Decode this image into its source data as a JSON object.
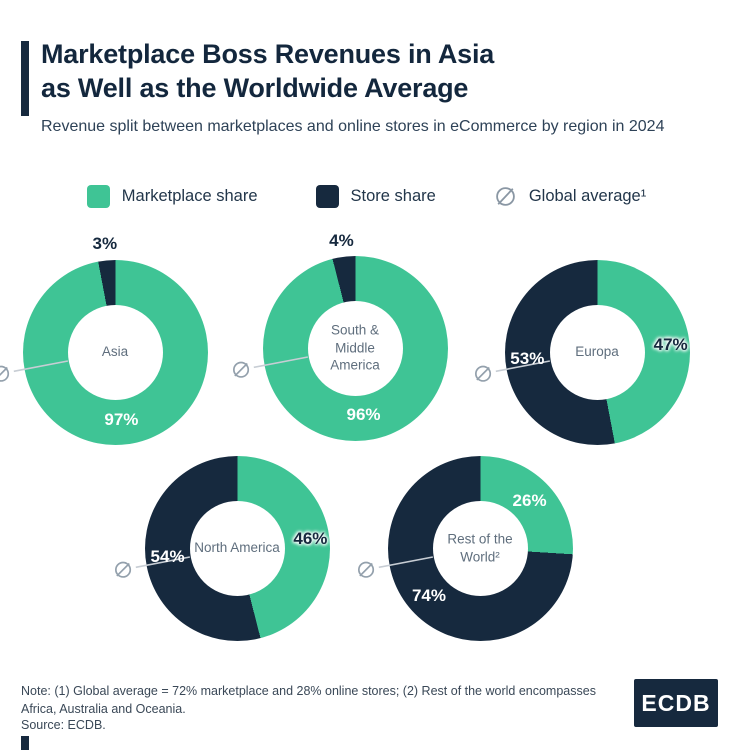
{
  "header": {
    "title_line1": "Marketplace Boss Revenues in Asia",
    "title_line2": "as Well as the Worldwide Average",
    "subtitle": "Revenue split between marketplaces and online stores in eCommerce by region in 2024"
  },
  "legend": {
    "marketplace": "Marketplace share",
    "store": "Store share",
    "global": "Global average¹"
  },
  "colors": {
    "green": "#3FC495",
    "navy": "#16293E",
    "marker_gray": "#93A0AC",
    "line_gray": "#C7CDD4"
  },
  "chart_data": {
    "type": "pie",
    "variant": "donut-multiples",
    "units": "%",
    "legend_position": "top",
    "global_average": {
      "marketplace": 72,
      "store": 28
    },
    "series_names": [
      "Marketplace share",
      "Store share"
    ],
    "charts": [
      {
        "region": "Asia",
        "marketplace_share": 97,
        "store_share": 3
      },
      {
        "region": "South & Middle America",
        "marketplace_share": 96,
        "store_share": 4
      },
      {
        "region": "Europa",
        "marketplace_share": 47,
        "store_share": 53
      },
      {
        "region": "North America",
        "marketplace_share": 46,
        "store_share": 54
      },
      {
        "region": "Rest of the World²",
        "marketplace_share": 26,
        "store_share": 74
      }
    ]
  },
  "footer": {
    "note": "Note: (1) Global average = 72% marketplace and 28% online stores; (2) Rest of the world encompasses Africa, Australia and Oceania.",
    "source": "Source: ECDB.",
    "logo": "ECDB"
  }
}
